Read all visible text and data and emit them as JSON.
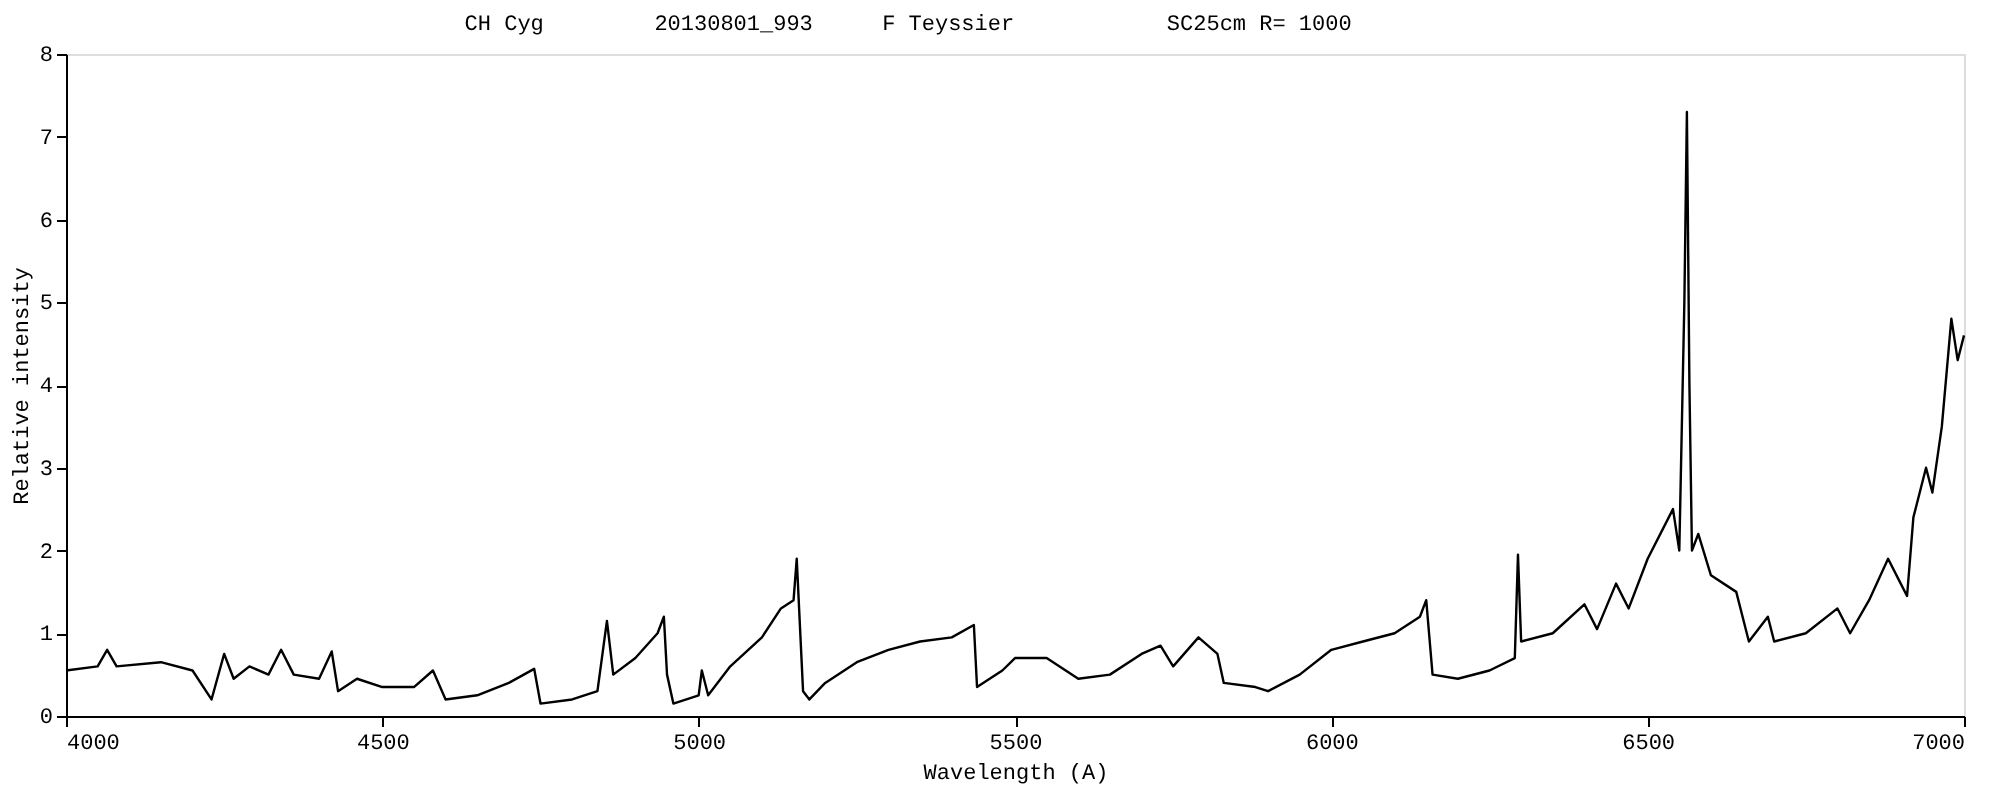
{
  "chart_data": {
    "type": "line",
    "title": "CH Cyg",
    "annotations": [
      "20130801_993",
      "F Teyssier",
      "SC25cm R= 1000"
    ],
    "xlabel": "Wavelength (A)",
    "ylabel": "Relative intensity",
    "xlim": [
      4000,
      7000
    ],
    "xticks": [
      4000,
      4500,
      5000,
      5500,
      6000,
      6500,
      7000
    ],
    "ylim": [
      0,
      8
    ],
    "yticks": [
      0,
      1,
      2,
      3,
      4,
      5,
      6,
      7,
      8
    ],
    "grid": false,
    "series": [
      {
        "color": "#000000",
        "x": [
          4000,
          4050,
          4065,
          4080,
          4150,
          4200,
          4230,
          4250,
          4265,
          4290,
          4320,
          4340,
          4360,
          4400,
          4420,
          4430,
          4460,
          4500,
          4550,
          4580,
          4600,
          4650,
          4700,
          4740,
          4750,
          4800,
          4840,
          4855,
          4865,
          4900,
          4935,
          4945,
          4950,
          4960,
          5000,
          5005,
          5015,
          5050,
          5100,
          5130,
          5150,
          5155,
          5165,
          5175,
          5200,
          5250,
          5300,
          5350,
          5400,
          5435,
          5440,
          5480,
          5500,
          5550,
          5600,
          5650,
          5700,
          5730,
          5750,
          5790,
          5820,
          5830,
          5880,
          5900,
          5950,
          6000,
          6050,
          6100,
          6140,
          6150,
          6160,
          6200,
          6250,
          6290,
          6295,
          6300,
          6350,
          6400,
          6420,
          6450,
          6470,
          6500,
          6540,
          6550,
          6558,
          6562,
          6566,
          6570,
          6580,
          6600,
          6640,
          6660,
          6690,
          6700,
          6750,
          6800,
          6820,
          6850,
          6880,
          6900,
          6910,
          6920,
          6940,
          6950,
          6965,
          6980,
          6990,
          7000
        ],
        "values": [
          0.55,
          0.6,
          0.8,
          0.6,
          0.65,
          0.55,
          0.2,
          0.75,
          0.45,
          0.6,
          0.5,
          0.8,
          0.5,
          0.45,
          0.78,
          0.3,
          0.45,
          0.35,
          0.35,
          0.55,
          0.2,
          0.25,
          0.4,
          0.57,
          0.15,
          0.2,
          0.3,
          1.15,
          0.5,
          0.7,
          1.0,
          1.2,
          0.5,
          0.15,
          0.25,
          0.55,
          0.25,
          0.6,
          0.95,
          1.3,
          1.4,
          1.9,
          0.3,
          0.2,
          0.4,
          0.65,
          0.8,
          0.9,
          0.95,
          1.1,
          0.35,
          0.55,
          0.7,
          0.7,
          0.45,
          0.5,
          0.75,
          0.85,
          0.6,
          0.95,
          0.75,
          0.4,
          0.35,
          0.3,
          0.5,
          0.8,
          0.9,
          1.0,
          1.2,
          1.4,
          0.5,
          0.45,
          0.55,
          0.7,
          1.95,
          0.9,
          1.0,
          1.35,
          1.05,
          1.6,
          1.3,
          1.9,
          2.5,
          2.0,
          5.0,
          7.3,
          4.0,
          2.0,
          2.2,
          1.7,
          1.5,
          0.9,
          1.2,
          0.9,
          1.0,
          1.3,
          1.0,
          1.4,
          1.9,
          1.6,
          1.45,
          2.4,
          3.0,
          2.7,
          3.5,
          4.8,
          4.3,
          4.6
        ]
      }
    ]
  }
}
